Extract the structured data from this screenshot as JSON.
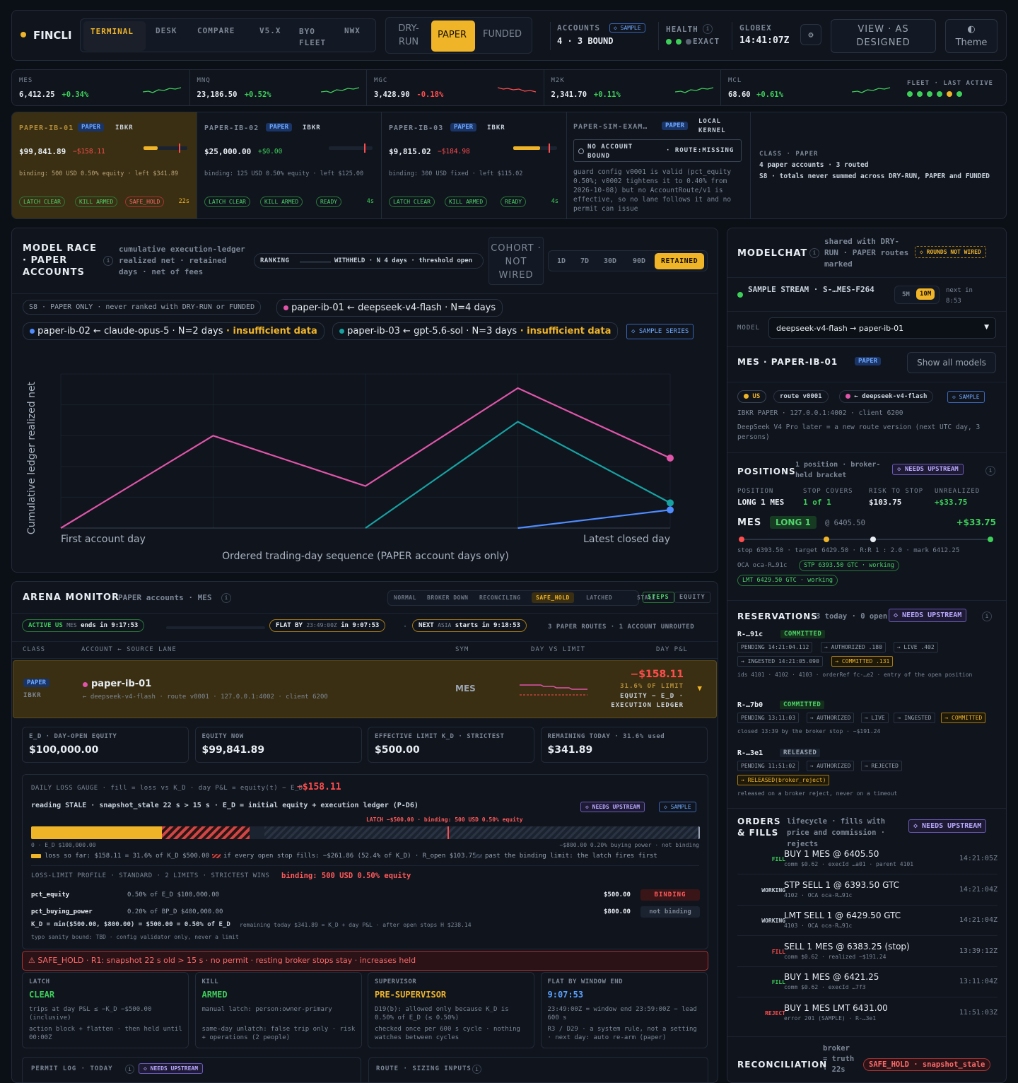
{
  "topbar": {
    "brand": "FINCLI",
    "tabs": [
      "TERMINAL",
      "DESK",
      "COMPARE",
      "V5.X",
      "BYO FLEET",
      "NWX"
    ],
    "modes": [
      "DRY-RUN",
      "PAPER",
      "FUNDED"
    ],
    "accounts_label": "ACCOUNTS",
    "accounts_tag": "◇ SAMPLE",
    "accounts_value": "4 · 3 BOUND",
    "health_label": "HEALTH",
    "health_value": "EXACT",
    "globex_label": "GLOBEX",
    "globex_value": "14:41:07Z",
    "view_btn": "VIEW · AS DESIGNED",
    "theme_btn": "◐ Theme"
  },
  "tickers": [
    {
      "sym": "MES",
      "price": "6,412.25",
      "chg": "+0.34%",
      "dir": "up"
    },
    {
      "sym": "MNQ",
      "price": "23,186.50",
      "chg": "+0.52%",
      "dir": "up"
    },
    {
      "sym": "MGC",
      "price": "3,428.90",
      "chg": "-0.18%",
      "dir": "down"
    },
    {
      "sym": "M2K",
      "price": "2,341.70",
      "chg": "+0.11%",
      "dir": "up"
    },
    {
      "sym": "MCL",
      "price": "68.60",
      "chg": "+0.61%",
      "dir": "up"
    }
  ],
  "fleet_label": "FLEET · LAST ACTIVE",
  "accounts": [
    {
      "name": "PAPER-IB-01",
      "tag": "PAPER",
      "broker": "IBKR",
      "equity": "$99,841.89",
      "pnl": "−$158.11",
      "binding": "binding: 500 USD 0.50% equity · left $341.89",
      "s1": "LATCH CLEAR",
      "s2": "KILL ARMED",
      "s3": "SAFE_HOLD",
      "age": "22s",
      "fill": 0.32
    },
    {
      "name": "PAPER-IB-02",
      "tag": "PAPER",
      "broker": "IBKR",
      "equity": "$25,000.00",
      "pnl": "+$0.00",
      "binding": "binding: 125 USD 0.50% equity · left $125.00",
      "s1": "LATCH CLEAR",
      "s2": "KILL ARMED",
      "s3": "READY",
      "age": "4s",
      "fill": 0.0
    },
    {
      "name": "PAPER-IB-03",
      "tag": "PAPER",
      "broker": "IBKR",
      "equity": "$9,815.02",
      "pnl": "−$184.98",
      "binding": "binding: 300 USD fixed · left $115.02",
      "s1": "LATCH CLEAR",
      "s2": "KILL ARMED",
      "s3": "READY",
      "age": "4s",
      "fill": 0.62
    }
  ],
  "sim": {
    "name": "PAPER-SIM-EXAM…",
    "tag": "PAPER",
    "kernel": "LOCAL KERNEL",
    "box_a": "NO ACCOUNT BOUND",
    "box_b": "· ROUTE:MISSING",
    "text": "guard config v0001 is valid (pct_equity 0.50%; v0002 tightens it to 0.40% from 2026-10-08) but no AccountRoute/v1 is effective, so no lane follows it and no permit can issue"
  },
  "class_box": {
    "l1": "CLASS · PAPER",
    "l2": "4 paper accounts · 3 routed",
    "l3": "S8 · totals never summed across DRY-RUN, PAPER and FUNDED"
  },
  "race": {
    "title": "MODEL RACE · PAPER ACCOUNTS",
    "sub": "cumulative execution-ledger realized net · retained days · net of fees",
    "ranking": "RANKING",
    "withheld": "WITHHELD · N 4 days · threshold open",
    "cohort": "COHORT · NOT WIRED",
    "ranges": [
      "1D",
      "7D",
      "30D",
      "90D",
      "RETAINED"
    ],
    "s8": "S8 · PAPER ONLY · never ranked with DRY-RUN or FUNDED",
    "legend": [
      {
        "label": "paper-ib-01 ← deepseek-v4-flash · N=4 days",
        "note": "",
        "color": "#e055a9"
      },
      {
        "label": "paper-ib-02 ← claude-opus-5 · N=2 days",
        "note": " · insufficient data",
        "color": "#4f8cff"
      },
      {
        "label": "paper-ib-03 ← gpt-5.6-sol · N=3 days",
        "note": " · insufficient data",
        "color": "#17a2a2"
      }
    ],
    "sample_series": "◇ SAMPLE SERIES"
  },
  "chart_data": {
    "type": "line",
    "ylabel": "Cumulative ledger realized net",
    "xlabel": "Ordered trading-day sequence (PAPER account days only)",
    "x_ticks": [
      "First account day",
      "Latest closed day"
    ],
    "x": [
      0,
      1,
      2,
      3,
      4
    ],
    "series": [
      {
        "name": "paper-ib-01",
        "color": "#e055a9",
        "points": [
          [
            0,
            0
          ],
          [
            1,
            0.66
          ],
          [
            2,
            0.3
          ],
          [
            3,
            1.0
          ],
          [
            4,
            0.5
          ]
        ]
      },
      {
        "name": "paper-ib-03",
        "color": "#17a2a2",
        "points": [
          [
            2,
            0
          ],
          [
            3,
            0.76
          ],
          [
            4,
            0.18
          ]
        ]
      },
      {
        "name": "paper-ib-02",
        "color": "#4f8cff",
        "points": [
          [
            3,
            0
          ],
          [
            4,
            0.13
          ]
        ]
      }
    ],
    "xlim": [
      0,
      4
    ],
    "ylim": [
      0,
      1.0
    ],
    "grid": true
  },
  "arena": {
    "title": "ARENA MONITOR",
    "sub": "PAPER accounts · MES",
    "states": [
      "NORMAL",
      "BROKER DOWN",
      "RECONCILING",
      "SAFE_HOLD",
      "LATCHED",
      "STALE"
    ],
    "views": [
      "STEPS",
      "EQUITY"
    ],
    "active": "ACTIVE US",
    "active_sub": "MES",
    "active_end": "ends in 9:17:53",
    "flat": "FLAT BY",
    "flat_sub": "23:49:00Z",
    "flat_in": "in 9:07:53",
    "next": "NEXT",
    "next_sub": "ASIA",
    "next_in": "starts in 9:18:53",
    "routes": "3 PAPER ROUTES · 1 ACCOUNT UNROUTED",
    "cols": [
      "CLASS",
      "ACCOUNT ← SOURCE LANE",
      "SYM",
      "DAY VS LIMIT",
      "DAY P&L"
    ],
    "row": {
      "tag": "PAPER",
      "broker": "IBKR",
      "name": "paper-ib-01",
      "lane": "← deepseek-v4-flash · route v0001 · 127.0.0.1:4002 · client 6200",
      "sym": "MES",
      "pnl": "−$158.11",
      "pct": "31.6% OF LIMIT",
      "eq": "EQUITY − E_D · EXECUTION LEDGER"
    },
    "stats": [
      {
        "l": "E_D · DAY-OPEN EQUITY",
        "v": "$100,000.00"
      },
      {
        "l": "EQUITY NOW",
        "v": "$99,841.89"
      },
      {
        "l": "EFFECTIVE LIMIT K_D · STRICTEST",
        "v": "$500.00"
      },
      {
        "l": "REMAINING TODAY · 31.6% used",
        "v": "$341.89"
      }
    ]
  },
  "gauge": {
    "title": "DAILY LOSS GAUGE · fill = loss vs K_D · day P&L = equity(t) − E_D",
    "value": "−$158.11",
    "stale": "reading STALE · snapshot_stale 22 s > 15 s · E_D = initial equity + execution ledger (P-D6)",
    "up": "◇ NEEDS UPSTREAM",
    "sample": "◇ SAMPLE",
    "latch": "LATCH −$500.00 · binding: 500 USD 0.50% equity",
    "left": "0 · E_D $100,000.00",
    "right": "−$800.00 0.20% buying power · not binding",
    "leg1": "loss so far: $158.11 = 31.6% of K_D $500.00",
    "leg2": "if every open stop fills: −$261.86 (52.4% of K_D) · R_open $103.75",
    "leg3": "past the binding limit: the latch fires first",
    "fill": 0.196,
    "stop": 0.327,
    "profile": "LOSS-LIMIT PROFILE · STANDARD · 2 LIMITS · STRICTEST WINS",
    "profile_bind": "binding: 500 USD 0.50% equity",
    "rows": [
      {
        "k": "pct_equity",
        "d": "0.50% of E_D $100,000.00",
        "v": "$500.00",
        "s": "BINDING"
      },
      {
        "k": "pct_buying_power",
        "d": "0.20% of BP_D $400,000.00",
        "v": "$800.00",
        "s": "not binding"
      }
    ],
    "kd": "K_D = min($500.00, $800.00) = $500.00 = 0.50% of E_D",
    "kd_note": "remaining today $341.89 = K_D + day P&L · after open stops H $238.14",
    "typo": "typo sanity bound: TBD · config validator only, never a limit"
  },
  "alert": "⚠ SAFE_HOLD · R1: snapshot 22 s old > 15 s · no permit · resting broker stops stay · increases held",
  "cards": [
    {
      "l": "LATCH",
      "v": "CLEAR",
      "c": "g",
      "t1": "trips at day P&L ≤ −K_D −$500.00 (inclusive)",
      "t2": "action block + flatten · then held until 00:00Z"
    },
    {
      "l": "KILL",
      "v": "ARMED",
      "c": "g",
      "t1": "manual latch: person:owner-primary",
      "t2": "same-day unlatch: false trip only · risk + operations (2 people)"
    },
    {
      "l": "SUPERVISOR",
      "v": "PRE-SUPERVISOR",
      "c": "y",
      "t1": "D19(b): allowed only because K_D is 0.50% of E_D (≤ 0.50%)",
      "t2": "checked once per 600 s cycle · nothing watches between cycles"
    },
    {
      "l": "FLAT BY WINDOW END",
      "v": "9:07:53",
      "c": "b",
      "t1": "23:49:00Z = window end 23:59:00Z − lead 600 s",
      "t2": "R3 / D29 · a system rule, not a setting · next day: auto re-arm (paper)"
    }
  ],
  "permit": "PERMIT LOG · TODAY",
  "permit_tag": "◇ NEEDS UPSTREAM",
  "route_sizing": "ROUTE · SIZING INPUTS",
  "modelchat": {
    "title": "MODELCHAT",
    "sub": "shared with DRY-RUN · PAPER routes marked",
    "rounds": "◇ ROUNDS NOT WIRED",
    "stream": "SAMPLE STREAM · S-…MES-F264",
    "r1": "5M",
    "r2": "10M",
    "next": "next in 8:53",
    "model_label": "MODEL",
    "model_value": "deepseek-v4-flash → paper-ib-01"
  },
  "mes": {
    "title": "MES · PAPER-IB-01",
    "tag": "PAPER",
    "show": "Show all models",
    "c1": "US",
    "c2": "route v0001",
    "c3": "← deepseek-v4-flash",
    "c4": "◇ SAMPLE",
    "l1": "IBKR PAPER · 127.0.0.1:4002 · client 6200",
    "l2": "DeepSeek V4 Pro later = a new route version (next UTC day, 3 persons)"
  },
  "positions": {
    "title": "POSITIONS",
    "sub": "1 position · broker-held bracket",
    "up": "◇ NEEDS UPSTREAM",
    "cols": [
      {
        "l": "POSITION",
        "v": "LONG 1 MES"
      },
      {
        "l": "STOP COVERS",
        "v": "1 of 1"
      },
      {
        "l": "RISK TO STOP",
        "v": "$103.75"
      },
      {
        "l": "UNREALIZED",
        "v": "+$33.75"
      }
    ],
    "sym": "MES",
    "side": "LONG 1",
    "at": "@ 6405.50",
    "pnl": "+$33.75",
    "line": "stop 6393.50 · target 6429.50 · R:R 1 : 2.0 · mark 6412.25",
    "oca": "OCA oca-R…91c",
    "stp": "STP 6393.50 GTC · working",
    "lmt": "LMT 6429.50 GTC · working"
  },
  "reservations": {
    "title": "RESERVATIONS",
    "sub": "3 today · 0 open",
    "up": "◇ NEEDS UPSTREAM",
    "items": [
      {
        "id": "R-…91c",
        "st": "COMMITTED",
        "steps": [
          "PENDING 14:21:04.112",
          "→ AUTHORIZED .180",
          "→ LIVE .402",
          "→ INGESTED 14:21:05.090",
          "→ COMMITTED .131"
        ],
        "note": "ids 4101 · 4102 · 4103 · orderRef fc-…e2 · entry of the open position"
      },
      {
        "id": "R-…7b0",
        "st": "COMMITTED",
        "steps": [
          "PENDING 13:11:03",
          "→ AUTHORIZED",
          "→ LIVE",
          "→ INGESTED",
          "→ COMMITTED"
        ],
        "note": "closed 13:39 by the broker stop · −$191.24"
      },
      {
        "id": "R-…3e1",
        "st": "RELEASED",
        "steps": [
          "PENDING 11:51:02",
          "→ AUTHORIZED",
          "→ REJECTED",
          "→ RELEASED(broker_reject)"
        ],
        "note": "released on a broker reject, never on a timeout"
      }
    ]
  },
  "orders": {
    "title": "ORDERS & FILLS",
    "sub": "lifecycle · fills with price and commission · rejects",
    "up": "◇ NEEDS UPSTREAM",
    "items": [
      {
        "k": "FILL",
        "c": "g",
        "t": "BUY 1 MES @ 6405.50",
        "s": "comm $0.62 · execId …a01 · parent 4101",
        "time": "14:21:05Z"
      },
      {
        "k": "WORKING",
        "c": "w",
        "t": "STP SELL 1 @ 6393.50 GTC",
        "s": "4102 · OCA oca-R…91c",
        "time": "14:21:04Z"
      },
      {
        "k": "WORKING",
        "c": "w",
        "t": "LMT SELL 1 @ 6429.50 GTC",
        "s": "4103 · OCA oca-R…91c",
        "time": "14:21:04Z"
      },
      {
        "k": "FILL",
        "c": "r",
        "t": "SELL 1 MES @ 6383.25 (stop)",
        "s": "comm $0.62 · realized −$191.24",
        "time": "13:39:12Z"
      },
      {
        "k": "FILL",
        "c": "g",
        "t": "BUY 1 MES @ 6421.25",
        "s": "comm $0.62 · execId …7f3",
        "time": "13:11:04Z"
      },
      {
        "k": "REJECT",
        "c": "r",
        "t": "BUY 1 MES LMT 6431.00",
        "s": "error 201 (SAMPLE) · R-…3e1",
        "time": "11:51:03Z"
      }
    ]
  },
  "recon": {
    "title": "RECONCILIATION",
    "sub": "broker = truth · 22s",
    "tag": "SAFE_HOLD · snapshot_stale"
  }
}
